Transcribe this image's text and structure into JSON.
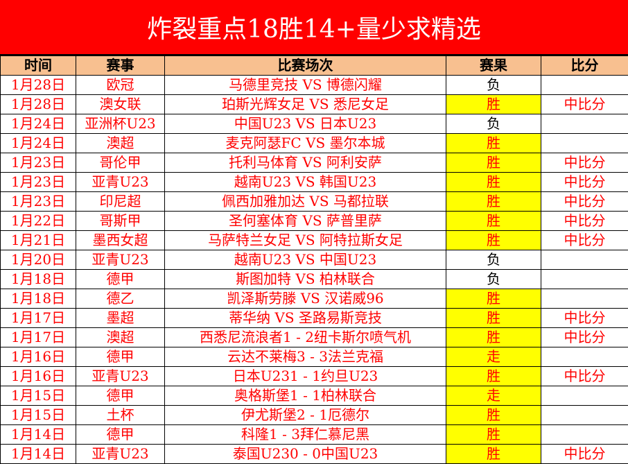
{
  "title": "炸裂重点18胜14+量少求精选",
  "colors": {
    "title_bg": "#ff0000",
    "header_bg": "#f8c090",
    "highlight": "#ffff00",
    "text": "#ff0000"
  },
  "headers": [
    "时间",
    "赛事",
    "比赛场次",
    "赛果",
    "比分"
  ],
  "rows": [
    {
      "date": "1月28日",
      "league": "欧冠",
      "match": "马德里竞技 VS 博德闪耀",
      "result": "负",
      "score": ""
    },
    {
      "date": "1月28日",
      "league": "澳女联",
      "match": "珀斯光辉女足 VS 悉尼女足",
      "result": "胜",
      "score": "中比分"
    },
    {
      "date": "1月24日",
      "league": "亚洲杯U23",
      "match": "中国U23 VS 日本U23",
      "result": "负",
      "score": ""
    },
    {
      "date": "1月24日",
      "league": "澳超",
      "match": "麦克阿瑟FC VS 墨尔本城",
      "result": "胜",
      "score": ""
    },
    {
      "date": "1月23日",
      "league": "哥伦甲",
      "match": "托利马体育 VS 阿利安萨",
      "result": "胜",
      "score": "中比分"
    },
    {
      "date": "1月23日",
      "league": "亚青U23",
      "match": "越南U23 VS 韩国U23",
      "result": "胜",
      "score": "中比分"
    },
    {
      "date": "1月23日",
      "league": "印尼超",
      "match": "佩西加雅加达 VS 马都拉联",
      "result": "胜",
      "score": "中比分"
    },
    {
      "date": "1月22日",
      "league": "哥斯甲",
      "match": "圣何塞体育 VS 萨普里萨",
      "result": "胜",
      "score": "中比分"
    },
    {
      "date": "1月21日",
      "league": "墨西女超",
      "match": "马萨特兰女足 VS 阿特拉斯女足",
      "result": "胜",
      "score": "中比分"
    },
    {
      "date": "1月20日",
      "league": "亚青U23",
      "match": "越南U23 VS 中国U23",
      "result": "负",
      "score": ""
    },
    {
      "date": "1月18日",
      "league": "德甲",
      "match": "斯图加特 VS 柏林联合",
      "result": "负",
      "score": ""
    },
    {
      "date": "1月18日",
      "league": "德乙",
      "match": "凯泽斯劳滕 VS 汉诺威96",
      "result": "胜",
      "score": ""
    },
    {
      "date": "1月17日",
      "league": "墨超",
      "match": "蒂华纳 VS 圣路易斯竞技",
      "result": "胜",
      "score": "中比分"
    },
    {
      "date": "1月17日",
      "league": "澳超",
      "match": "西悉尼流浪者1 - 2纽卡斯尔喷气机",
      "result": "胜",
      "score": "中比分"
    },
    {
      "date": "1月16日",
      "league": "德甲",
      "match": "云达不莱梅3 - 3法兰克福",
      "result": "走",
      "score": ""
    },
    {
      "date": "1月16日",
      "league": "亚青U23",
      "match": "日本U231 - 1约旦U23",
      "result": "胜",
      "score": "中比分"
    },
    {
      "date": "1月15日",
      "league": "德甲",
      "match": "奥格斯堡1 - 1柏林联合",
      "result": "走",
      "score": ""
    },
    {
      "date": "1月15日",
      "league": "土杯",
      "match": "伊尤斯堡2 - 1厄德尔",
      "result": "胜",
      "score": ""
    },
    {
      "date": "1月14日",
      "league": "德甲",
      "match": "科隆1 - 3拜仁慕尼黑",
      "result": "胜",
      "score": ""
    },
    {
      "date": "1月14日",
      "league": "亚青U23",
      "match": "泰国U230 - 0中国U23",
      "result": "胜",
      "score": "中比分"
    }
  ]
}
